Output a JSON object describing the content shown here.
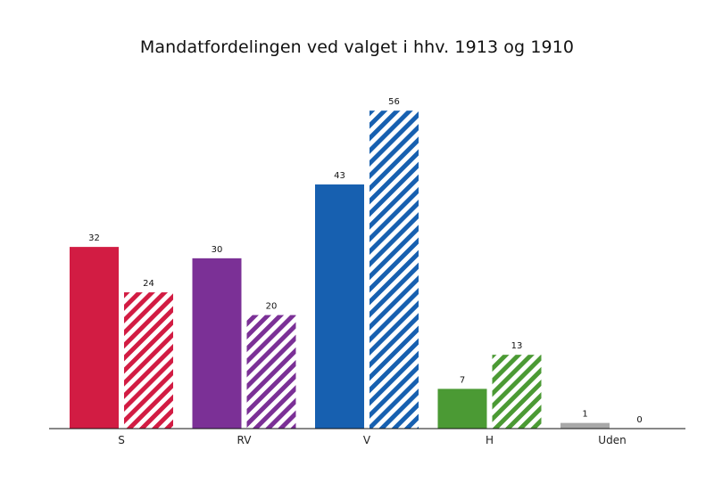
{
  "chart_data": {
    "type": "bar",
    "title": "Mandatfordelingen ved valget i hhv. 1913 og 1910",
    "xlabel": "",
    "ylabel": "",
    "categories": [
      "S",
      "RV",
      "V",
      "H",
      "Uden"
    ],
    "series": [
      {
        "values": [
          32,
          30,
          43,
          7,
          1
        ],
        "fill": "solid"
      },
      {
        "values": [
          24,
          20,
          56,
          13,
          0
        ],
        "fill": "hatched"
      }
    ],
    "colors": [
      "#d21c43",
      "#7b3096",
      "#1760b0",
      "#4b9a34",
      "#a8a8a8"
    ],
    "ylim": [
      0,
      60
    ],
    "grid": false,
    "legend": "none"
  }
}
